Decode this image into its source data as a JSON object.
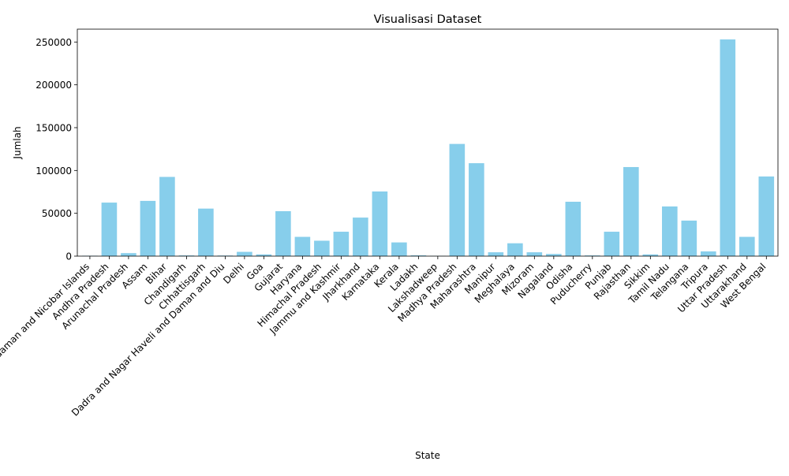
{
  "chart_data": {
    "type": "bar",
    "title": "Visualisasi Dataset",
    "xlabel": "State",
    "ylabel": "Jumlah",
    "ylim": [
      0,
      265000
    ],
    "yticks": [
      0,
      50000,
      100000,
      150000,
      200000,
      250000
    ],
    "grid": false,
    "legend": "none",
    "bar_color": "#87CEEB",
    "categories": [
      "Andaman and Nicobar Islands",
      "Andhra Pradesh",
      "Arunachal Pradesh",
      "Assam",
      "Bihar",
      "Chandigarh",
      "Chhattisgarh",
      "Dadra and Nagar Haveli and Daman and Diu",
      "Delhi",
      "Goa",
      "Gujarat",
      "Haryana",
      "Himachal Pradesh",
      "Jammu and Kashmir",
      "Jharkhand",
      "Karnataka",
      "Kerala",
      "Ladakh",
      "Lakshadweep",
      "Madhya Pradesh",
      "Maharashtra",
      "Manipur",
      "Meghalaya",
      "Mizoram",
      "Nagaland",
      "Odisha",
      "Puducherry",
      "Punjab",
      "Rajasthan",
      "Sikkim",
      "Tamil Nadu",
      "Telangana",
      "Tripura",
      "Uttar Pradesh",
      "Uttarakhand",
      "West Bengal"
    ],
    "values": [
      500,
      62500,
      3500,
      64500,
      92500,
      800,
      55500,
      700,
      5000,
      2000,
      52500,
      22500,
      18000,
      28500,
      45000,
      75500,
      16000,
      900,
      300,
      131000,
      108500,
      4500,
      15000,
      4500,
      2500,
      63500,
      800,
      28500,
      104000,
      2000,
      58000,
      41500,
      5500,
      253000,
      22500,
      93000
    ]
  }
}
